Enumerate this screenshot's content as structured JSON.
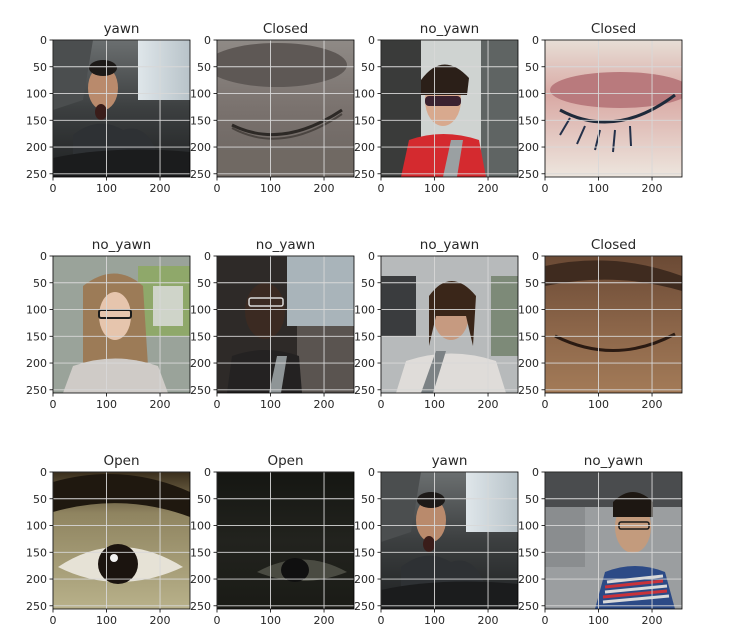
{
  "figure": {
    "rows": 3,
    "cols": 4
  },
  "chart_data": {
    "type": "image-grid",
    "xticks": [
      0,
      100,
      200
    ],
    "yticks": [
      0,
      50,
      100,
      150,
      200,
      250
    ],
    "xlim": [
      0,
      256
    ],
    "ylim": [
      256,
      0
    ],
    "grid": true,
    "panels": [
      {
        "title": "yawn",
        "scene": "driver-yawn"
      },
      {
        "title": "Closed",
        "scene": "eye-closed-grey"
      },
      {
        "title": "no_yawn",
        "scene": "driver-woman-sunglasses"
      },
      {
        "title": "Closed",
        "scene": "eye-closed-makeup"
      },
      {
        "title": "no_yawn",
        "scene": "driver-woman-glasses"
      },
      {
        "title": "no_yawn",
        "scene": "driver-man-glasses"
      },
      {
        "title": "no_yawn",
        "scene": "driver-woman-dark-hair"
      },
      {
        "title": "Closed",
        "scene": "eye-closed-brown"
      },
      {
        "title": "Open",
        "scene": "eye-open-bright"
      },
      {
        "title": "Open",
        "scene": "eye-open-dark"
      },
      {
        "title": "yawn",
        "scene": "driver-yawn-2"
      },
      {
        "title": "no_yawn",
        "scene": "driver-man-striped"
      }
    ]
  }
}
